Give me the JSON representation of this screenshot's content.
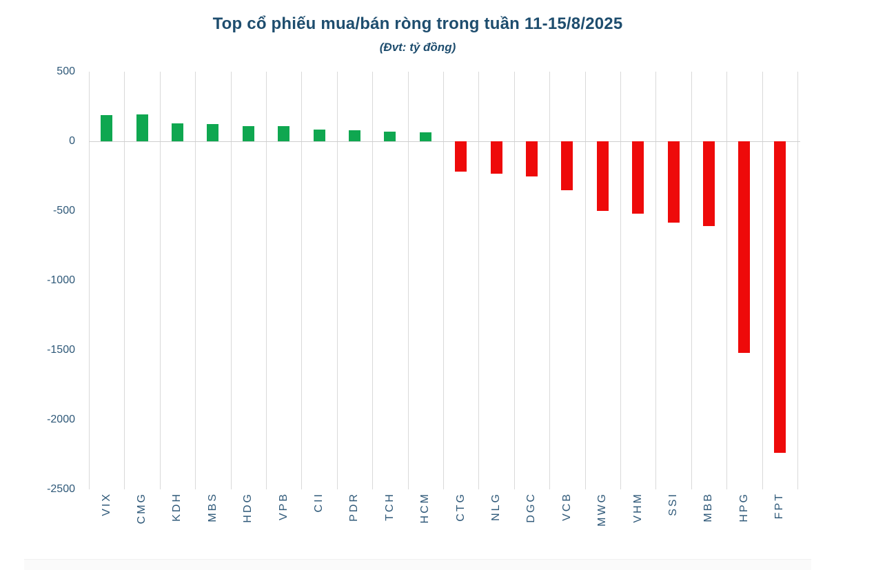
{
  "chart_data": {
    "type": "bar",
    "title": "Top cổ phiếu mua/bán ròng trong tuần 11-15/8/2025",
    "subtitle": "(Đvt: tỷ đồng)",
    "unit_label": "tỷ đồng",
    "categories": [
      "VIX",
      "CMG",
      "KDH",
      "MBS",
      "HDG",
      "VPB",
      "CII",
      "PDR",
      "TCH",
      "HCM",
      "CTG",
      "NLG",
      "DGC",
      "VCB",
      "MWG",
      "VHM",
      "SSI",
      "MBB",
      "HPG",
      "FPT"
    ],
    "values": [
      186,
      195,
      128,
      124,
      108,
      110,
      82,
      78,
      71,
      63,
      -220,
      -231,
      -251,
      -350,
      -500,
      -519,
      -584,
      -611,
      -1518,
      -2238
    ],
    "series_note": "positive = net buy (green), negative = net sell (red)",
    "ylim": [
      -2500,
      500
    ],
    "y_ticks": [
      500,
      0,
      -500,
      -1000,
      -1500,
      -2000,
      -2500
    ],
    "grid": "vertical-only",
    "legend": "none",
    "colors": {
      "positive": "#0fa750",
      "negative": "#ee0a0a",
      "gridline": "#d9d9d9",
      "zero_line": "#cfcfcf",
      "title": "#1e4d6e",
      "axis_label": "#2e5878"
    }
  }
}
